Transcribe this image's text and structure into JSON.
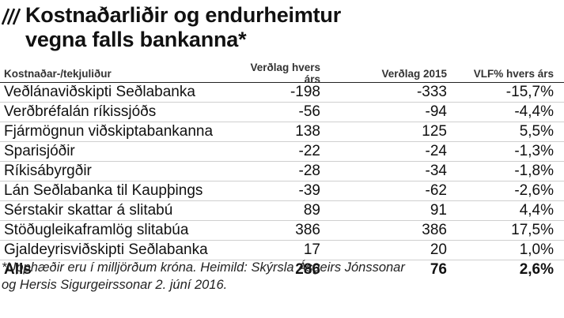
{
  "title": {
    "line1": "Kostnaðarliðir og endurheimtur",
    "line2": "vegna falls bankanna*"
  },
  "table": {
    "headers": [
      "Kostnaðar-/tekjuliður",
      "Verðlag hvers árs",
      "Verðlag 2015",
      "VLF% hvers árs"
    ],
    "rows": [
      [
        "Veðlánaviðskipti Seðlabanka",
        "-198",
        "-333",
        "-15,7%"
      ],
      [
        "Verðbréfalán ríkissjóðs",
        "-56",
        "-94",
        "-4,4%"
      ],
      [
        "Fjármögnun viðskiptabankanna",
        "138",
        "125",
        "5,5%"
      ],
      [
        "Sparisjóðir",
        "-22",
        "-24",
        "-1,3%"
      ],
      [
        "Ríkisábyrgðir",
        "-28",
        "-34",
        "-1,8%"
      ],
      [
        "Lán Seðlabanka til Kaupþings",
        "-39",
        "-62",
        "-2,6%"
      ],
      [
        "Sérstakir skattar á slitabú",
        "89",
        "91",
        "4,4%"
      ],
      [
        "Stöðugleikaframlög slitabúa",
        "386",
        "386",
        "17,5%"
      ],
      [
        "Gjaldeyrisviðskipti Seðlabanka",
        "17",
        "20",
        "1,0%"
      ]
    ],
    "total": [
      "Alls",
      "286",
      "76",
      "2,6%"
    ]
  },
  "footnote": {
    "line1": "*Upphæðir eru í milljörðum króna. Heimild: Skýrsla Ásgeirs Jónssonar",
    "line2": "og Hersis Sigurgeirssonar 2. júní 2016."
  }
}
